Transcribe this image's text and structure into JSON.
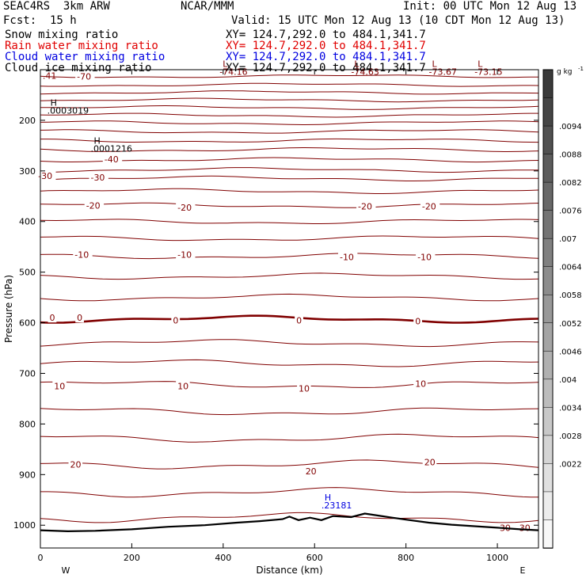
{
  "header": {
    "model": "SEAC4RS  3km ARW",
    "org": "NCAR/MMM",
    "init": "Init: 00 UTC Mon 12 Aug 13",
    "fcst": "Fcst:  15 h",
    "valid": "Valid: 15 UTC Mon 12 Aug 13 (10 CDT Mon 12 Aug 13)"
  },
  "fields": [
    {
      "label": "Snow mixing ratio",
      "xy": "XY= 124.7,292.0 to 484.1,341.7",
      "color": "#000000"
    },
    {
      "label": "Rain water mixing ratio",
      "xy": "XY= 124.7,292.0 to 484.1,341.7",
      "color": "#e00000"
    },
    {
      "label": "Cloud water mixing ratio",
      "xy": "XY= 124.7,292.0 to 484.1,341.7",
      "color": "#0000e0"
    },
    {
      "label": "Cloud ice mixing ratio",
      "xy": "XY= 124.7,292.0 to 484.1,341.7",
      "color": "#000000"
    }
  ],
  "chart_data": {
    "type": "contour",
    "xlabel": "Distance (km)",
    "ylabel": "Pressure (hPa)",
    "xlim": [
      0,
      1090
    ],
    "ylim": [
      1045,
      100
    ],
    "x_ticks": [
      0,
      200,
      400,
      600,
      800,
      1000
    ],
    "y_ticks": [
      200,
      300,
      400,
      500,
      600,
      700,
      800,
      900,
      1000
    ],
    "x_end_labels": {
      "left": "W",
      "right": "E"
    },
    "contour_color": "#800000",
    "isotherm_levels": [
      {
        "p": 113,
        "label": "-70"
      },
      {
        "p": 130
      },
      {
        "p": 145
      },
      {
        "p": 160
      },
      {
        "p": 175
      },
      {
        "p": 190
      },
      {
        "p": 205
      },
      {
        "p": 222
      },
      {
        "p": 240
      },
      {
        "p": 258
      },
      {
        "p": 278
      },
      {
        "p": 298
      },
      {
        "p": 315,
        "label": "-30"
      },
      {
        "p": 340
      },
      {
        "p": 368,
        "label": "-20"
      },
      {
        "p": 400
      },
      {
        "p": 433
      },
      {
        "p": 468,
        "label": "-10"
      },
      {
        "p": 508
      },
      {
        "p": 550
      },
      {
        "p": 593,
        "label": "0",
        "bold": true
      },
      {
        "p": 640
      },
      {
        "p": 680
      },
      {
        "p": 722,
        "label": "10"
      },
      {
        "p": 775
      },
      {
        "p": 828
      },
      {
        "p": 880,
        "label": "20"
      },
      {
        "p": 935
      },
      {
        "p": 985
      }
    ],
    "contour_labels": [
      {
        "x": 80,
        "p": 113,
        "text": "-70"
      },
      {
        "x": 140,
        "p": 277,
        "text": "-40"
      },
      {
        "x": -5,
        "p": 310,
        "text": "-30"
      },
      {
        "x": 110,
        "p": 313,
        "text": "-30"
      },
      {
        "x": 100,
        "p": 368,
        "text": "-20"
      },
      {
        "x": 300,
        "p": 372,
        "text": "-20"
      },
      {
        "x": 695,
        "p": 370,
        "text": "-20"
      },
      {
        "x": 835,
        "p": 370,
        "text": "-20"
      },
      {
        "x": 75,
        "p": 465,
        "text": "-10"
      },
      {
        "x": 300,
        "p": 465,
        "text": "-10"
      },
      {
        "x": 655,
        "p": 470,
        "text": "-10"
      },
      {
        "x": 825,
        "p": 470,
        "text": "-10"
      },
      {
        "x": 20,
        "p": 590,
        "text": "0"
      },
      {
        "x": 80,
        "p": 590,
        "text": "0"
      },
      {
        "x": 290,
        "p": 595,
        "text": "0"
      },
      {
        "x": 560,
        "p": 595,
        "text": "0"
      },
      {
        "x": 820,
        "p": 597,
        "text": "0"
      },
      {
        "x": 30,
        "p": 725,
        "text": "10"
      },
      {
        "x": 300,
        "p": 725,
        "text": "10"
      },
      {
        "x": 565,
        "p": 730,
        "text": "10"
      },
      {
        "x": 820,
        "p": 720,
        "text": "10"
      },
      {
        "x": 65,
        "p": 880,
        "text": "20"
      },
      {
        "x": 580,
        "p": 893,
        "text": "20"
      },
      {
        "x": 840,
        "p": 875,
        "text": "20"
      },
      {
        "x": 1005,
        "p": 1005,
        "text": "30"
      },
      {
        "x": 1048,
        "p": 1005,
        "text": "30"
      }
    ],
    "extrema": [
      {
        "x": 5,
        "p": 118,
        "text": ".41",
        "color": "#800000"
      },
      {
        "x": 392,
        "p": 110,
        "letter": "L",
        "text": "-74.16",
        "color": "#800000"
      },
      {
        "x": 680,
        "p": 110,
        "letter": "L",
        "text": "-74.63",
        "color": "#800000"
      },
      {
        "x": 850,
        "p": 110,
        "letter": "L",
        "text": "-73.67",
        "color": "#800000"
      },
      {
        "x": 950,
        "p": 110,
        "letter": "L",
        "text": "-73.15",
        "color": "#800000"
      },
      {
        "x": 15,
        "p": 187,
        "letter": "H",
        "text": ".0003019",
        "color": "#000000"
      },
      {
        "x": 110,
        "p": 262,
        "letter": "H",
        "text": ".0001216",
        "color": "#000000"
      },
      {
        "x": 615,
        "p": 967,
        "letter": "H",
        "text": ".23181",
        "color": "#0000e0"
      }
    ],
    "terrain_surface_hPa": [
      [
        0,
        1010
      ],
      [
        60,
        1012
      ],
      [
        120,
        1011
      ],
      [
        200,
        1008
      ],
      [
        280,
        1003
      ],
      [
        360,
        1000
      ],
      [
        430,
        995
      ],
      [
        480,
        992
      ],
      [
        530,
        988
      ],
      [
        545,
        983
      ],
      [
        565,
        990
      ],
      [
        590,
        985
      ],
      [
        615,
        990
      ],
      [
        640,
        982
      ],
      [
        680,
        984
      ],
      [
        710,
        977
      ],
      [
        740,
        981
      ],
      [
        770,
        985
      ],
      [
        800,
        989
      ],
      [
        850,
        995
      ],
      [
        900,
        999
      ],
      [
        950,
        1002
      ],
      [
        1000,
        1005
      ],
      [
        1050,
        1008
      ],
      [
        1090,
        1010
      ]
    ],
    "colorbar": {
      "unit": "g kg-1",
      "tick_labels": [
        ".0094",
        ".0088",
        ".0082",
        ".0076",
        ".007",
        ".0064",
        ".0058",
        ".0052",
        ".0046",
        ".004",
        ".0034",
        ".0028",
        ".0022"
      ],
      "colors": [
        "#3a3a3a",
        "#454545",
        "#515151",
        "#5c5c5c",
        "#686868",
        "#747474",
        "#808080",
        "#8c8c8c",
        "#989898",
        "#a4a4a4",
        "#b0b0b0",
        "#bcbcbc",
        "#c8c8c8",
        "#d4d4d4",
        "#e0e0e0",
        "#ececec",
        "#f8f8f8"
      ]
    },
    "grid": false
  }
}
